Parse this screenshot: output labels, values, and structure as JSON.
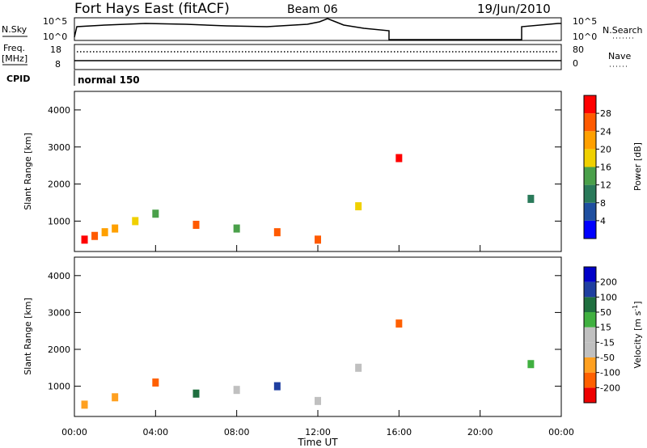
{
  "header": {
    "station": "Fort Hays East (fitACF)",
    "beam": "Beam 06",
    "date": "19/Jun/2010"
  },
  "strip": {
    "nsky_label": "N.Sky",
    "nsearch_label": "N.Search",
    "noise_ticks_top": "10^5",
    "noise_ticks_bottom": "10^0",
    "freq_label": "Freq.",
    "freq_unit": "[MHz]",
    "freq_ticks": [
      "18",
      "8"
    ],
    "nave_label": "Nave",
    "nave_ticks": [
      "80",
      "0"
    ],
    "cpid_label": "CPID",
    "cpid_value": "normal 150"
  },
  "colors": {
    "power_scale": [
      "#0000ff",
      "#1f4fa0",
      "#2a7a5a",
      "#4aa04a",
      "#f0d000",
      "#ffa000",
      "#ff5a00",
      "#ff0000"
    ],
    "velocity_scale": [
      "#ee0000",
      "#ff6000",
      "#ffa020",
      "#c0c0c0",
      "#c0c0c0",
      "#40b040",
      "#1f6f3f",
      "#1f3fa0",
      "#0000c8"
    ]
  },
  "chart_data": [
    {
      "type": "heatmap",
      "panel": "power",
      "ylabel": "Slant Range [km]",
      "yticks": [
        "1000",
        "2000",
        "3000",
        "4000"
      ],
      "ylim": [
        180,
        4500
      ],
      "xlim": [
        "00:00",
        "24:00"
      ],
      "colorbar": {
        "label": "Power [dB]",
        "ticks": [
          "4",
          "8",
          "12",
          "16",
          "20",
          "24",
          "28"
        ],
        "range": [
          0,
          32
        ]
      },
      "cells": [
        {
          "t": 0.5,
          "r": 500,
          "v": 28
        },
        {
          "t": 1.0,
          "r": 600,
          "v": 24
        },
        {
          "t": 1.5,
          "r": 700,
          "v": 20
        },
        {
          "t": 2.0,
          "r": 800,
          "v": 22
        },
        {
          "t": 3.0,
          "r": 1000,
          "v": 16
        },
        {
          "t": 4.0,
          "r": 1200,
          "v": 12
        },
        {
          "t": 6.0,
          "r": 900,
          "v": 26
        },
        {
          "t": 8.0,
          "r": 800,
          "v": 14
        },
        {
          "t": 10.0,
          "r": 700,
          "v": 24
        },
        {
          "t": 12.0,
          "r": 500,
          "v": 26
        },
        {
          "t": 14.0,
          "r": 1400,
          "v": 18
        },
        {
          "t": 16.0,
          "r": 2700,
          "v": 28
        },
        {
          "t": 22.5,
          "r": 1600,
          "v": 10
        }
      ]
    },
    {
      "type": "heatmap",
      "panel": "velocity",
      "ylabel": "Slant Range [km]",
      "xlabel": "Time UT",
      "yticks": [
        "1000",
        "2000",
        "3000",
        "4000"
      ],
      "xticks": [
        "00:00",
        "04:00",
        "08:00",
        "12:00",
        "16:00",
        "20:00",
        "00:00"
      ],
      "ylim": [
        180,
        4500
      ],
      "xlim": [
        "00:00",
        "24:00"
      ],
      "colorbar": {
        "label": "Velocity [m s^-1]",
        "ticks": [
          "200",
          "100",
          "50",
          "15",
          "-15",
          "-50",
          "-100",
          "-200"
        ],
        "range": [
          -250,
          250
        ]
      },
      "cells": [
        {
          "t": 0.5,
          "r": 500,
          "v": -60
        },
        {
          "t": 2.0,
          "r": 700,
          "v": -80
        },
        {
          "t": 4.0,
          "r": 1100,
          "v": -100
        },
        {
          "t": 6.0,
          "r": 800,
          "v": 20
        },
        {
          "t": 8.0,
          "r": 900,
          "v": 0
        },
        {
          "t": 10.0,
          "r": 1000,
          "v": 60
        },
        {
          "t": 12.0,
          "r": 600,
          "v": -40
        },
        {
          "t": 14.0,
          "r": 1500,
          "v": -10
        },
        {
          "t": 16.0,
          "r": 2700,
          "v": -150
        },
        {
          "t": 22.5,
          "r": 1600,
          "v": 5
        }
      ]
    }
  ]
}
